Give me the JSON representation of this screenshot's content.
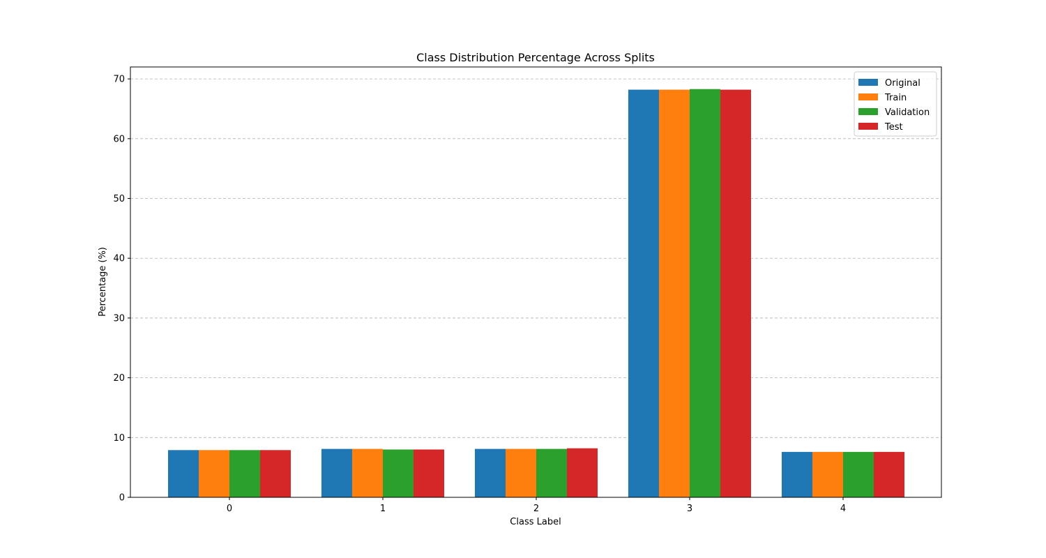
{
  "chart_data": {
    "type": "bar",
    "title": "Class Distribution Percentage Across Splits",
    "xlabel": "Class Label",
    "ylabel": "Percentage (%)",
    "categories": [
      "0",
      "1",
      "2",
      "3",
      "4"
    ],
    "ylim": [
      0,
      72
    ],
    "yticks": [
      0,
      10,
      20,
      30,
      40,
      50,
      60,
      70
    ],
    "grid": "y-dashed",
    "legend_position": "top-right",
    "series": [
      {
        "name": "Original",
        "color": "#1f77b4",
        "values": [
          7.9,
          8.1,
          8.1,
          68.2,
          7.6
        ]
      },
      {
        "name": "Train",
        "color": "#ff7f0e",
        "values": [
          7.9,
          8.1,
          8.1,
          68.2,
          7.6
        ]
      },
      {
        "name": "Validation",
        "color": "#2ca02c",
        "values": [
          7.9,
          8.0,
          8.1,
          68.3,
          7.6
        ]
      },
      {
        "name": "Test",
        "color": "#d62728",
        "values": [
          7.9,
          8.0,
          8.2,
          68.2,
          7.6
        ]
      }
    ]
  }
}
